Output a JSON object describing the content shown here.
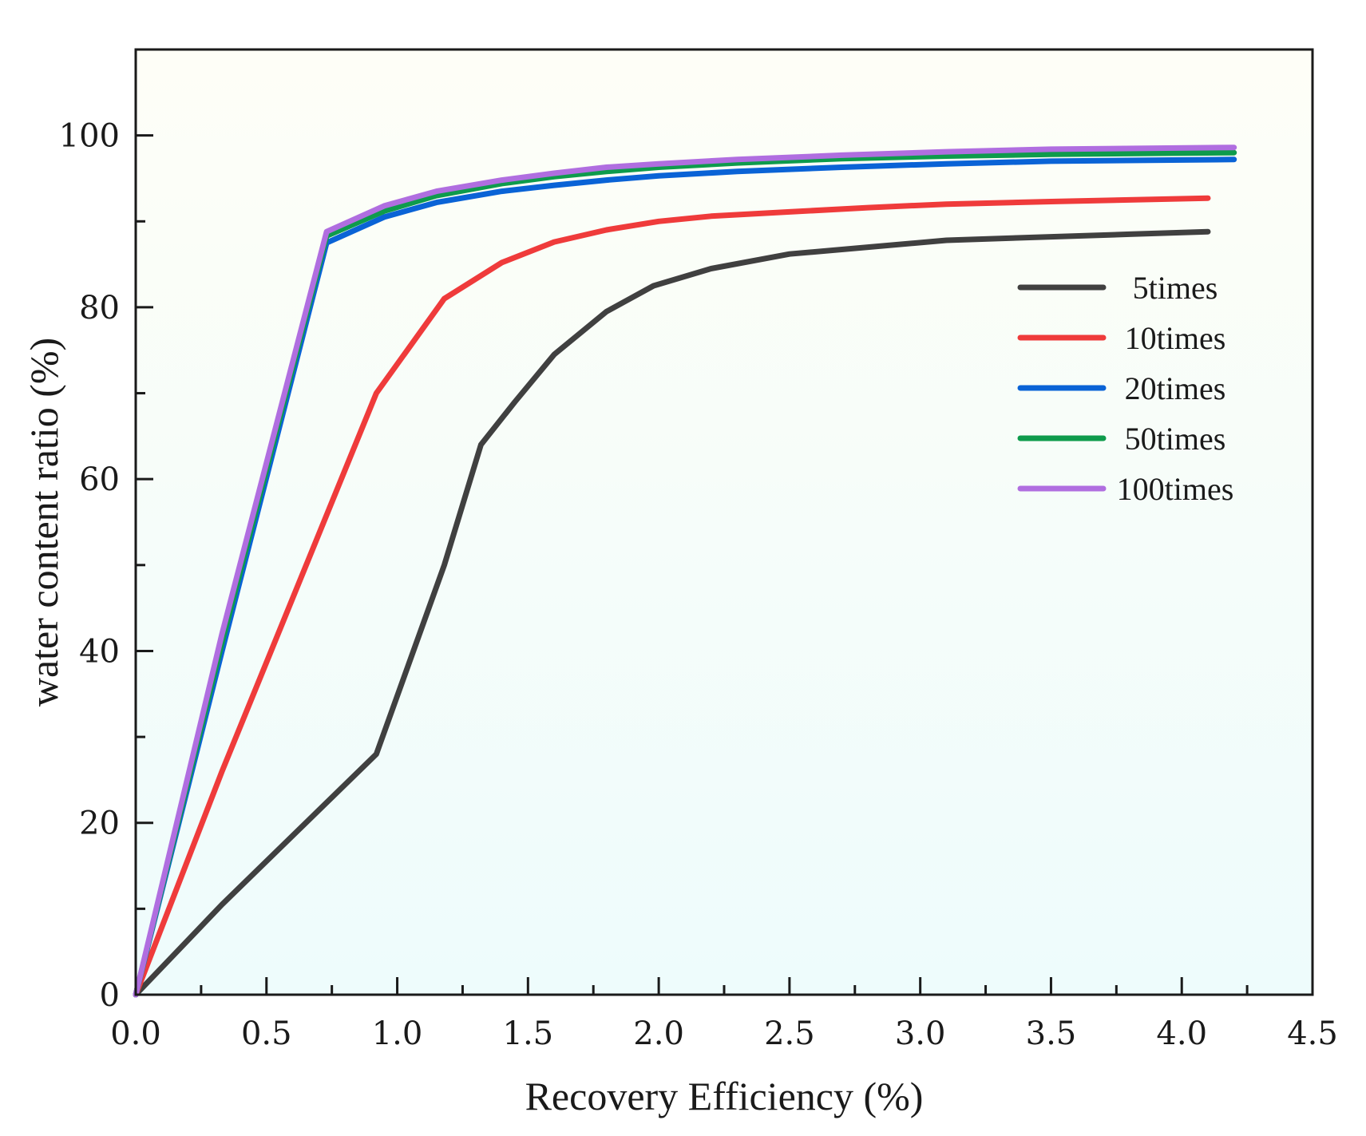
{
  "chart_data": {
    "type": "line",
    "title": "",
    "xlabel": "Recovery Efficiency (%)",
    "ylabel": "water content ratio (%)",
    "xlim": [
      0,
      4.5
    ],
    "ylim": [
      0,
      110
    ],
    "x_ticks": [
      0,
      0.5,
      1.0,
      1.5,
      2.0,
      2.5,
      3.0,
      3.5,
      4.0,
      4.5
    ],
    "x_tick_labels": [
      "0.0",
      "0.5",
      "1.0",
      "1.5",
      "2.0",
      "2.5",
      "3.0",
      "3.5",
      "4.0",
      "4.5"
    ],
    "y_ticks": [
      0,
      20,
      40,
      60,
      80,
      100
    ],
    "y_tick_labels": [
      "0",
      "20",
      "40",
      "60",
      "80",
      "100"
    ],
    "grid": false,
    "legend_position": "right",
    "background_gradient": [
      "#fefef7",
      "#eefcfc"
    ],
    "series": [
      {
        "name": "5times",
        "color": "#404040",
        "x": [
          0,
          0.33,
          0.92,
          1.18,
          1.32,
          1.45,
          1.6,
          1.8,
          1.98,
          2.2,
          2.5,
          2.8,
          3.1,
          3.5,
          3.8,
          4.1
        ],
        "y": [
          0,
          10.5,
          28,
          50,
          64,
          69,
          74.5,
          79.5,
          82.5,
          84.5,
          86.2,
          87,
          87.8,
          88.2,
          88.5,
          88.8
        ]
      },
      {
        "name": "10times",
        "color": "#ef3b3b",
        "x": [
          0,
          0.33,
          0.92,
          1.18,
          1.4,
          1.6,
          1.8,
          2.0,
          2.2,
          2.5,
          2.8,
          3.1,
          3.5,
          4.1
        ],
        "y": [
          0,
          26,
          70,
          81,
          85.2,
          87.6,
          89,
          90,
          90.6,
          91.1,
          91.6,
          92,
          92.3,
          92.7
        ]
      },
      {
        "name": "20times",
        "color": "#0a63d6",
        "x": [
          0,
          0.33,
          0.73,
          0.95,
          1.15,
          1.4,
          1.6,
          1.8,
          2.0,
          2.3,
          2.7,
          3.1,
          3.5,
          4.2
        ],
        "y": [
          0,
          40,
          87.5,
          90.5,
          92.2,
          93.5,
          94.2,
          94.8,
          95.3,
          95.8,
          96.3,
          96.7,
          97,
          97.2
        ]
      },
      {
        "name": "50times",
        "color": "#0e9b4c",
        "x": [
          0,
          0.33,
          0.73,
          0.95,
          1.15,
          1.4,
          1.6,
          1.8,
          2.0,
          2.3,
          2.7,
          3.1,
          3.5,
          4.2
        ],
        "y": [
          0,
          41,
          88.3,
          91.2,
          93,
          94.4,
          95.2,
          95.8,
          96.3,
          96.8,
          97.3,
          97.6,
          97.8,
          98
        ]
      },
      {
        "name": "100times",
        "color": "#b06ee0",
        "x": [
          0,
          0.33,
          0.73,
          0.95,
          1.15,
          1.4,
          1.6,
          1.8,
          2.0,
          2.3,
          2.7,
          3.1,
          3.5,
          4.2
        ],
        "y": [
          0,
          42,
          88.8,
          91.8,
          93.5,
          94.8,
          95.6,
          96.3,
          96.7,
          97.2,
          97.7,
          98.1,
          98.4,
          98.6
        ]
      }
    ]
  }
}
